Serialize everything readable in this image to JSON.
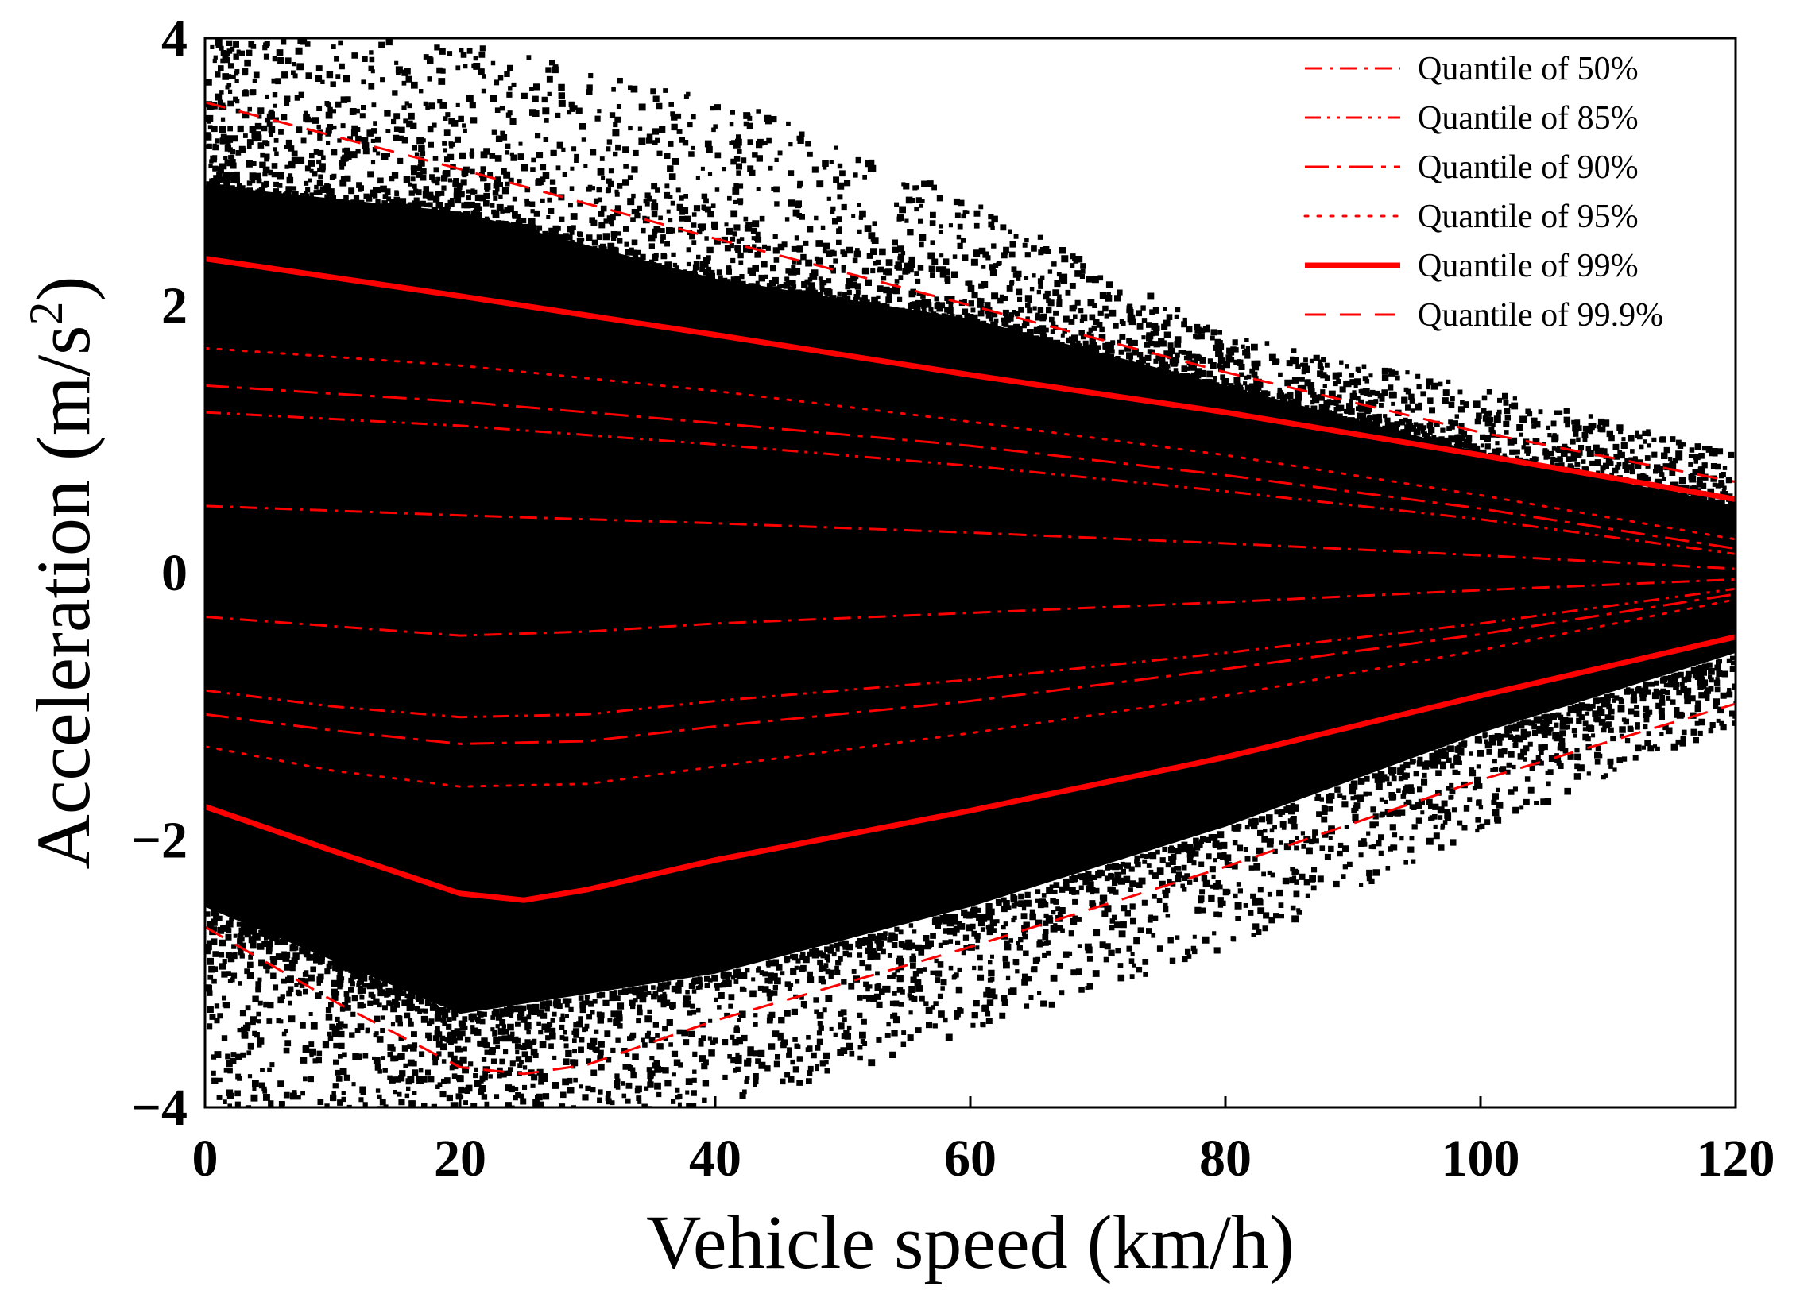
{
  "chart_data": {
    "type": "scatter",
    "title": "",
    "xlabel": "Vehicle speed (km/h)",
    "ylabel_main": "Acceleration (m/s",
    "ylabel_sup": "2",
    "ylabel_close": ")",
    "xlim": [
      0,
      120
    ],
    "ylim": [
      -4,
      4
    ],
    "xticks": [
      0,
      20,
      40,
      60,
      80,
      100,
      120
    ],
    "yticks": [
      -4,
      -2,
      0,
      2,
      4
    ],
    "xtick_labels": [
      "0",
      "20",
      "40",
      "60",
      "80",
      "100",
      "120"
    ],
    "ytick_labels": [
      "−4",
      "−2",
      "0",
      "2",
      "4"
    ],
    "grid": false,
    "legend_position": "top-right",
    "colors": {
      "points": "#000000",
      "quantile_lines": "#ff0000",
      "background": "#ffffff"
    },
    "scatter_description_envelope": {
      "dense_upper": [
        [
          0,
          2.9
        ],
        [
          20,
          2.7
        ],
        [
          40,
          2.2
        ],
        [
          60,
          1.9
        ],
        [
          80,
          1.4
        ],
        [
          100,
          0.9
        ],
        [
          120,
          0.5
        ]
      ],
      "dense_lower": [
        [
          0,
          -2.5
        ],
        [
          20,
          -3.3
        ],
        [
          40,
          -3.0
        ],
        [
          60,
          -2.5
        ],
        [
          80,
          -1.9
        ],
        [
          100,
          -1.2
        ],
        [
          120,
          -0.6
        ]
      ],
      "sparse_upper": [
        [
          0,
          4.0
        ],
        [
          20,
          4.0
        ],
        [
          40,
          3.6
        ],
        [
          60,
          2.8
        ],
        [
          80,
          1.8
        ],
        [
          100,
          1.4
        ],
        [
          120,
          0.9
        ]
      ],
      "sparse_lower": [
        [
          0,
          -4.0
        ],
        [
          20,
          -4.0
        ],
        [
          40,
          -4.0
        ],
        [
          60,
          -3.4
        ],
        [
          80,
          -2.8
        ],
        [
          100,
          -1.9
        ],
        [
          120,
          -1.1
        ]
      ]
    },
    "series": [
      {
        "name": "Quantile of 50%",
        "dash": "dashdot-short",
        "width": 3,
        "upper": [
          [
            0,
            0.5
          ],
          [
            20,
            0.43
          ],
          [
            40,
            0.37
          ],
          [
            60,
            0.3
          ],
          [
            80,
            0.22
          ],
          [
            100,
            0.13
          ],
          [
            120,
            0.03
          ]
        ],
        "lower": [
          [
            0,
            -0.33
          ],
          [
            10,
            -0.4
          ],
          [
            20,
            -0.47
          ],
          [
            30,
            -0.44
          ],
          [
            40,
            -0.38
          ],
          [
            60,
            -0.3
          ],
          [
            80,
            -0.22
          ],
          [
            100,
            -0.13
          ],
          [
            120,
            -0.05
          ]
        ]
      },
      {
        "name": "Quantile of 85%",
        "dash": "dashdotdot",
        "width": 3,
        "upper": [
          [
            0,
            1.2
          ],
          [
            20,
            1.1
          ],
          [
            40,
            0.96
          ],
          [
            60,
            0.8
          ],
          [
            80,
            0.61
          ],
          [
            100,
            0.4
          ],
          [
            120,
            0.14
          ]
        ],
        "lower": [
          [
            0,
            -0.88
          ],
          [
            10,
            -1.0
          ],
          [
            20,
            -1.08
          ],
          [
            30,
            -1.06
          ],
          [
            40,
            -0.96
          ],
          [
            60,
            -0.8
          ],
          [
            80,
            -0.6
          ],
          [
            100,
            -0.38
          ],
          [
            120,
            -0.12
          ]
        ]
      },
      {
        "name": "Quantile of 90%",
        "dash": "dashdot-long",
        "width": 3,
        "upper": [
          [
            0,
            1.4
          ],
          [
            20,
            1.28
          ],
          [
            40,
            1.12
          ],
          [
            60,
            0.95
          ],
          [
            80,
            0.73
          ],
          [
            100,
            0.48
          ],
          [
            120,
            0.18
          ]
        ],
        "lower": [
          [
            0,
            -1.06
          ],
          [
            10,
            -1.18
          ],
          [
            20,
            -1.28
          ],
          [
            30,
            -1.26
          ],
          [
            40,
            -1.15
          ],
          [
            60,
            -0.96
          ],
          [
            80,
            -0.72
          ],
          [
            100,
            -0.46
          ],
          [
            120,
            -0.16
          ]
        ]
      },
      {
        "name": "Quantile of 95%",
        "dash": "dotted",
        "width": 3,
        "upper": [
          [
            0,
            1.68
          ],
          [
            20,
            1.55
          ],
          [
            40,
            1.36
          ],
          [
            60,
            1.13
          ],
          [
            80,
            0.88
          ],
          [
            100,
            0.58
          ],
          [
            120,
            0.25
          ]
        ],
        "lower": [
          [
            0,
            -1.3
          ],
          [
            10,
            -1.48
          ],
          [
            20,
            -1.6
          ],
          [
            30,
            -1.58
          ],
          [
            40,
            -1.45
          ],
          [
            60,
            -1.2
          ],
          [
            80,
            -0.92
          ],
          [
            100,
            -0.58
          ],
          [
            120,
            -0.2
          ]
        ]
      },
      {
        "name": "Quantile of 99%",
        "dash": "solid",
        "width": 7,
        "upper": [
          [
            0,
            2.35
          ],
          [
            20,
            2.07
          ],
          [
            40,
            1.78
          ],
          [
            60,
            1.48
          ],
          [
            80,
            1.2
          ],
          [
            100,
            0.88
          ],
          [
            120,
            0.55
          ]
        ],
        "lower": [
          [
            0,
            -1.75
          ],
          [
            10,
            -2.08
          ],
          [
            20,
            -2.4
          ],
          [
            25,
            -2.45
          ],
          [
            30,
            -2.37
          ],
          [
            40,
            -2.15
          ],
          [
            60,
            -1.78
          ],
          [
            80,
            -1.38
          ],
          [
            100,
            -0.92
          ],
          [
            120,
            -0.48
          ]
        ]
      },
      {
        "name": "Quantile of 99.9%",
        "dash": "dashed",
        "width": 3,
        "upper": [
          [
            0,
            3.52
          ],
          [
            20,
            3.02
          ],
          [
            40,
            2.5
          ],
          [
            60,
            2.0
          ],
          [
            80,
            1.5
          ],
          [
            100,
            1.05
          ],
          [
            120,
            0.68
          ]
        ],
        "lower": [
          [
            0,
            -2.65
          ],
          [
            10,
            -3.2
          ],
          [
            20,
            -3.7
          ],
          [
            25,
            -3.75
          ],
          [
            30,
            -3.68
          ],
          [
            40,
            -3.35
          ],
          [
            60,
            -2.8
          ],
          [
            80,
            -2.2
          ],
          [
            100,
            -1.55
          ],
          [
            120,
            -0.98
          ]
        ]
      }
    ]
  }
}
